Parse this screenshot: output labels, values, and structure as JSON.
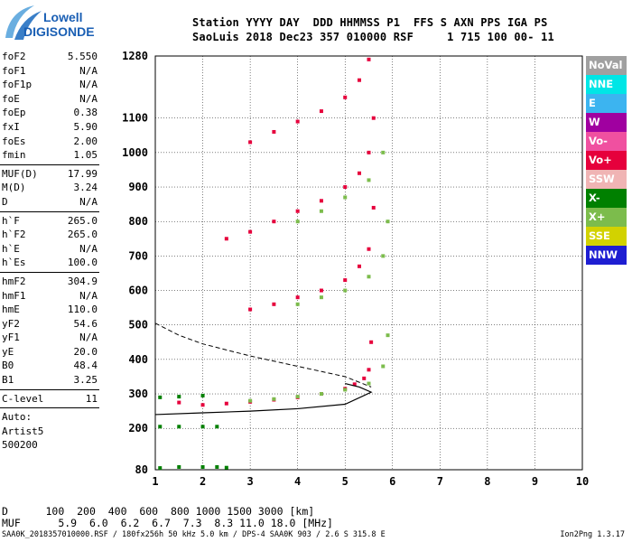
{
  "logo": {
    "line1": "Lowell",
    "line2": "DIGISONDE"
  },
  "header": {
    "line1": "Station YYYY DAY  DDD HHMMSS P1  FFS S AXN PPS IGA PS",
    "line2": "SaoLuis 2018 Dec23 357 010000 RSF     1 715 100 00- 11"
  },
  "params": [
    {
      "name": "foF2",
      "value": "5.550"
    },
    {
      "name": "foF1",
      "value": "N/A"
    },
    {
      "name": "foF1p",
      "value": "N/A"
    },
    {
      "name": "foE",
      "value": "N/A"
    },
    {
      "name": "foEp",
      "value": "0.38"
    },
    {
      "name": "fxI",
      "value": "5.90"
    },
    {
      "name": "foEs",
      "value": "2.00"
    },
    {
      "name": "fmin",
      "value": "1.05"
    },
    {
      "sep": true
    },
    {
      "name": "MUF(D)",
      "value": "17.99"
    },
    {
      "name": "M(D)",
      "value": "3.24"
    },
    {
      "name": "D",
      "value": "N/A"
    },
    {
      "sep": true
    },
    {
      "name": "h`F",
      "value": "265.0"
    },
    {
      "name": "h`F2",
      "value": "265.0"
    },
    {
      "name": "h`E",
      "value": "N/A"
    },
    {
      "name": "h`Es",
      "value": "100.0"
    },
    {
      "sep": true
    },
    {
      "name": "hmF2",
      "value": "304.9"
    },
    {
      "name": "hmF1",
      "value": "N/A"
    },
    {
      "name": "hmE",
      "value": "110.0"
    },
    {
      "name": "yF2",
      "value": "54.6"
    },
    {
      "name": "yF1",
      "value": "N/A"
    },
    {
      "name": "yE",
      "value": "20.0"
    },
    {
      "name": "B0",
      "value": "48.4"
    },
    {
      "name": "B1",
      "value": "3.25"
    },
    {
      "sep": true
    },
    {
      "name": "C-level",
      "value": "11"
    },
    {
      "sep": true
    },
    {
      "text": "Auto:"
    },
    {
      "text": "Artist5"
    },
    {
      "text": "500200"
    }
  ],
  "legend": [
    {
      "label": "NoVal",
      "color": "#a0a0a0"
    },
    {
      "label": "NNE",
      "color": "#00e6e6"
    },
    {
      "label": "E",
      "color": "#3cb4f0"
    },
    {
      "label": "W",
      "color": "#a000a0"
    },
    {
      "label": "Vo-",
      "color": "#f050a0"
    },
    {
      "label": "Vo+",
      "color": "#e6003c"
    },
    {
      "label": "SSW",
      "color": "#f0b4b4"
    },
    {
      "label": "X-",
      "color": "#008000"
    },
    {
      "label": "X+",
      "color": "#7cbc4c"
    },
    {
      "label": "SSE",
      "color": "#d2d200"
    },
    {
      "label": "NNW",
      "color": "#1e1ed2"
    }
  ],
  "distance_table": {
    "row1_label": "D",
    "row1_values": "100  200  400  600  800 1000 1500 3000 [km]",
    "row2_label": "MUF",
    "row2_values": "5.9  6.0  6.2  6.7  7.3  8.3 11.0 18.0 [MHz]"
  },
  "footer": {
    "left": "SAA0K_2018357010000.RSF / 180fx256h 50 kHz 5.0 km / DPS-4 SAA0K 903 / 2.6 S 315.8 E",
    "right": "Ion2Png 1.3.17"
  },
  "chart_data": {
    "type": "scatter",
    "title": "",
    "xlabel": "",
    "ylabel": "",
    "xlim": [
      1,
      10
    ],
    "ylim": [
      80,
      1280
    ],
    "xticks": [
      1,
      2,
      3,
      4,
      5,
      6,
      7,
      8,
      9,
      10
    ],
    "yticks": [
      80,
      200,
      300,
      400,
      500,
      600,
      700,
      800,
      900,
      1000,
      1100,
      1280
    ],
    "grid": true,
    "legend_position": "right",
    "series": [
      {
        "name": "Vo+",
        "color": "#e6003c",
        "x": [
          1.5,
          2.0,
          2.5,
          3.0,
          3.5,
          4.0,
          4.5,
          5.0,
          5.2,
          5.4,
          5.5,
          5.55
        ],
        "y": [
          275,
          268,
          272,
          277,
          283,
          290,
          300,
          315,
          328,
          345,
          370,
          450
        ]
      },
      {
        "name": "Vo+",
        "color": "#e6003c",
        "x": [
          3.0,
          3.5,
          4.0,
          4.5,
          5.0,
          5.3,
          5.5,
          5.6
        ],
        "y": [
          545,
          560,
          580,
          600,
          630,
          670,
          720,
          840
        ]
      },
      {
        "name": "Vo+",
        "color": "#e6003c",
        "x": [
          2.5,
          3.0,
          3.5,
          4.0,
          4.5,
          5.0,
          5.3,
          5.5,
          5.6
        ],
        "y": [
          750,
          770,
          800,
          830,
          860,
          900,
          940,
          1000,
          1100
        ]
      },
      {
        "name": "Vo+",
        "color": "#e6003c",
        "x": [
          3.0,
          3.5,
          4.0,
          4.5,
          5.0,
          5.3,
          5.5
        ],
        "y": [
          1030,
          1060,
          1090,
          1120,
          1160,
          1210,
          1270
        ]
      },
      {
        "name": "X+",
        "color": "#7cbc4c",
        "x": [
          3.0,
          3.5,
          4.0,
          4.5,
          5.0,
          5.5,
          5.8,
          5.9
        ],
        "y": [
          280,
          285,
          292,
          300,
          312,
          330,
          380,
          470
        ]
      },
      {
        "name": "X+",
        "color": "#7cbc4c",
        "x": [
          4.0,
          4.5,
          5.0,
          5.5,
          5.8,
          5.9
        ],
        "y": [
          560,
          580,
          600,
          640,
          700,
          800
        ]
      },
      {
        "name": "X+",
        "color": "#7cbc4c",
        "x": [
          4.0,
          4.5,
          5.0,
          5.5,
          5.8
        ],
        "y": [
          800,
          830,
          870,
          920,
          1000
        ]
      },
      {
        "name": "Es",
        "color": "#008000",
        "x": [
          1.1,
          1.5,
          2.0,
          2.3,
          2.5
        ],
        "y": [
          85,
          88,
          88,
          88,
          86
        ]
      },
      {
        "name": "Es",
        "color": "#008000",
        "x": [
          1.1,
          1.5,
          2.0,
          2.3
        ],
        "y": [
          205,
          205,
          205,
          205
        ]
      },
      {
        "name": "Es",
        "color": "#008000",
        "x": [
          1.1,
          1.5,
          2.0
        ],
        "y": [
          290,
          292,
          295
        ]
      }
    ],
    "profile_line": {
      "x": [
        1.0,
        2.0,
        3.0,
        4.0,
        5.0,
        5.55,
        5.3,
        5.0
      ],
      "y": [
        240,
        245,
        250,
        257,
        270,
        305,
        320,
        330
      ]
    },
    "mid_curve": {
      "x": [
        1.0,
        1.5,
        2.0,
        3.0,
        4.0,
        5.0,
        5.55
      ],
      "y": [
        505,
        470,
        445,
        410,
        380,
        350,
        320
      ]
    }
  }
}
